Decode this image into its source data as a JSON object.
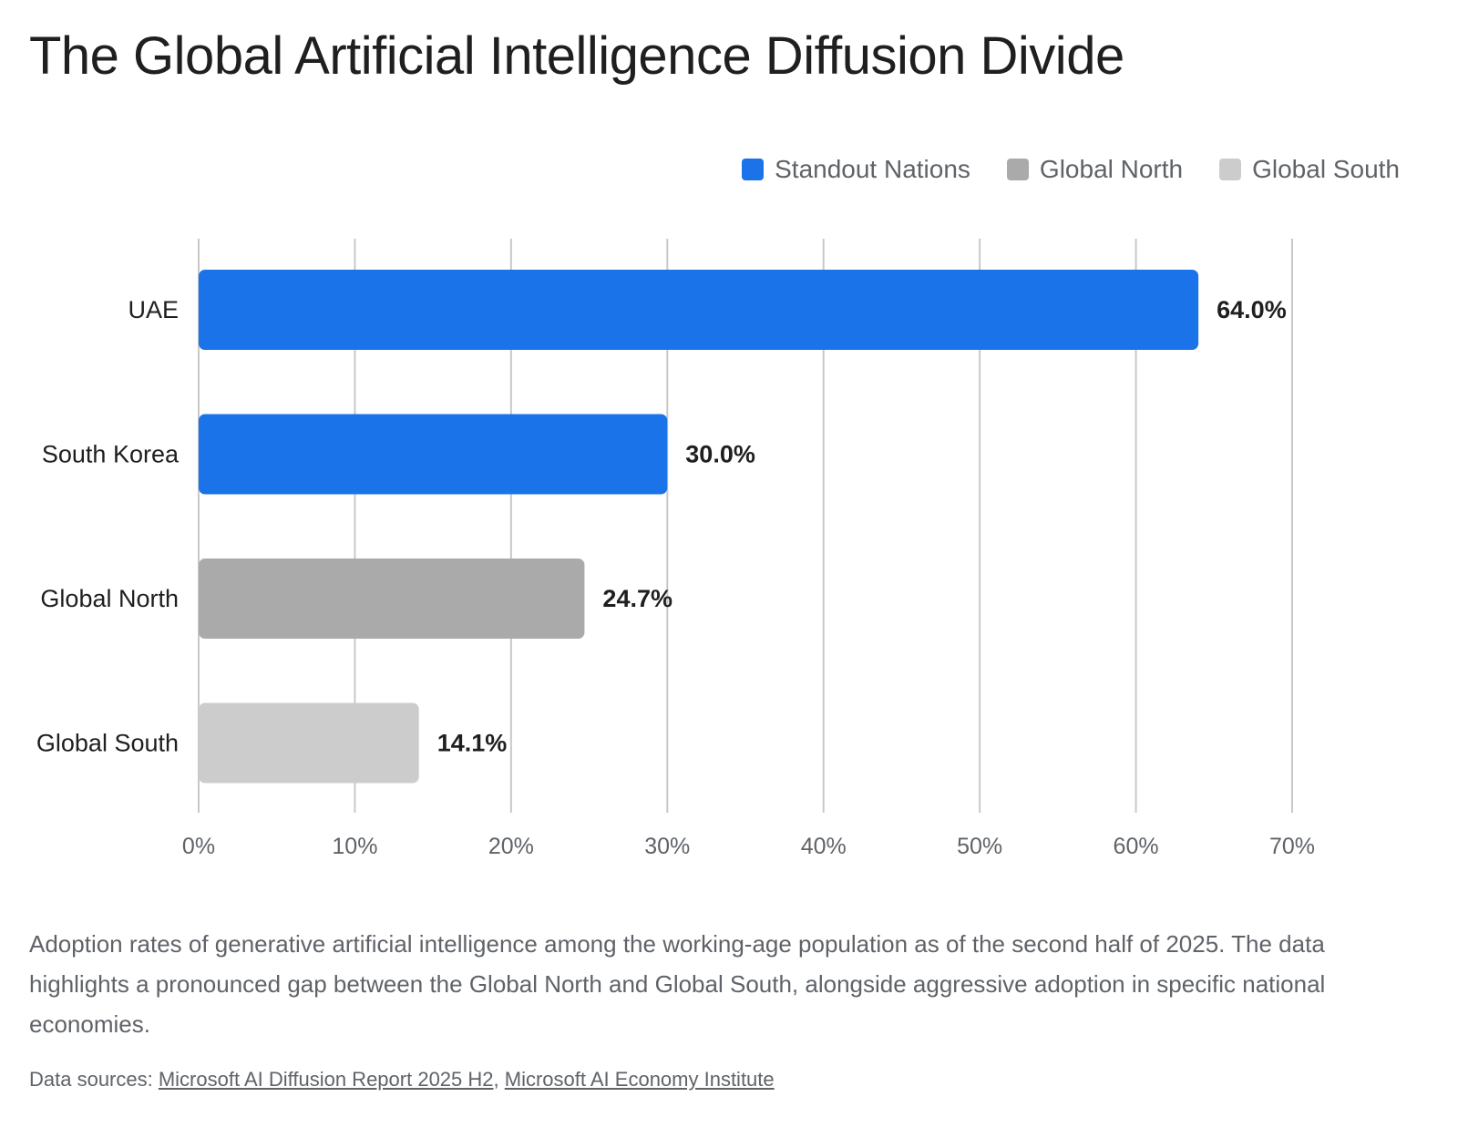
{
  "title": "The Global Artificial Intelligence Diffusion Divide",
  "legend": [
    {
      "label": "Standout Nations",
      "color": "#1a73e8"
    },
    {
      "label": "Global North",
      "color": "#aaaaaa"
    },
    {
      "label": "Global South",
      "color": "#cccccc"
    }
  ],
  "chart_data": {
    "type": "bar",
    "orientation": "horizontal",
    "categories": [
      "UAE",
      "South Korea",
      "Global North",
      "Global South"
    ],
    "values": [
      64.0,
      30.0,
      24.7,
      14.1
    ],
    "value_labels": [
      "64.0%",
      "30.0%",
      "24.7%",
      "14.1%"
    ],
    "groups": [
      "Standout Nations",
      "Standout Nations",
      "Global North",
      "Global South"
    ],
    "bar_colors": [
      "#1a73e8",
      "#1a73e8",
      "#aaaaaa",
      "#cccccc"
    ],
    "x_ticks": [
      "0%",
      "10%",
      "20%",
      "30%",
      "40%",
      "50%",
      "60%",
      "70%"
    ],
    "xlim": [
      0,
      70
    ],
    "grid": true,
    "legend_position": "top-right"
  },
  "description": "Adoption rates of generative artificial intelligence among the working-age population as of the second half of 2025. The data highlights a pronounced gap between the Global North and Global South, alongside aggressive adoption in specific national economies.",
  "sources": {
    "prefix": "Data sources: ",
    "links": [
      "Microsoft AI Diffusion Report 2025 H2",
      "Microsoft AI Economy Institute"
    ],
    "separator": ", "
  }
}
